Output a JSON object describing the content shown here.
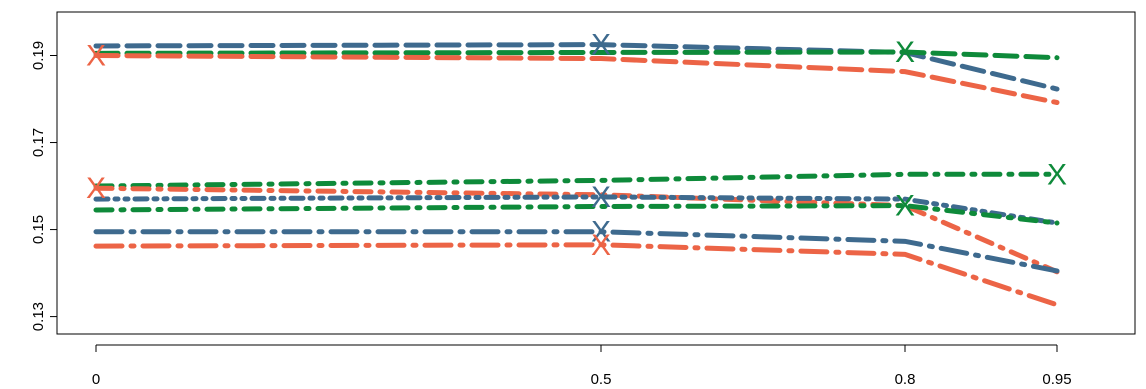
{
  "chart_data": {
    "type": "line",
    "title": "",
    "xlabel": "",
    "ylabel": "",
    "x": [
      0,
      0.5,
      0.8,
      0.95
    ],
    "x_tick_labels": [
      "0",
      "0.5",
      "0.8",
      "0.95"
    ],
    "y_ticks": [
      0.13,
      0.15,
      0.17,
      0.19
    ],
    "y_tick_labels": [
      "0.13",
      "0.15",
      "0.17",
      "0.19"
    ],
    "ylim": [
      0.126,
      0.2
    ],
    "grid": false,
    "marker_glyph": "X",
    "colors": {
      "blue": "#3e6a8e",
      "orange": "#ec6446",
      "green": "#0e8a3a"
    },
    "series": [
      {
        "color": "blue",
        "style": "dashed",
        "values": [
          0.1922,
          0.1925,
          0.1907,
          0.1823
        ],
        "marker_at": 0.5
      },
      {
        "color": "green",
        "style": "dashed",
        "values": [
          0.1905,
          0.1907,
          0.1908,
          0.1895
        ],
        "marker_at": 0.8
      },
      {
        "color": "orange",
        "style": "dashed",
        "values": [
          0.19,
          0.1893,
          0.1863,
          0.1792
        ],
        "marker_at": 0
      },
      {
        "color": "green",
        "style": "dash-dot",
        "values": [
          0.16,
          0.1613,
          0.1627,
          0.1627
        ],
        "marker_at": 0.95
      },
      {
        "color": "orange",
        "style": "dash-dot",
        "values": [
          0.1595,
          0.158,
          0.1555,
          0.1403
        ],
        "marker_at": 0
      },
      {
        "color": "blue",
        "style": "dash-dot-dot",
        "values": [
          0.157,
          0.1575,
          0.157,
          0.1515
        ],
        "marker_at": 0.5
      },
      {
        "color": "green",
        "style": "dash-dot",
        "values": [
          0.1545,
          0.1553,
          0.1555,
          0.1515
        ],
        "marker_at": 0.8
      },
      {
        "color": "blue",
        "style": "long-dash-dot",
        "values": [
          0.1495,
          0.1495,
          0.1473,
          0.1405
        ],
        "marker_at": 0.5
      },
      {
        "color": "orange",
        "style": "long-dash-dot",
        "values": [
          0.1462,
          0.1465,
          0.1443,
          0.1327
        ],
        "marker_at": 0.5
      }
    ]
  }
}
